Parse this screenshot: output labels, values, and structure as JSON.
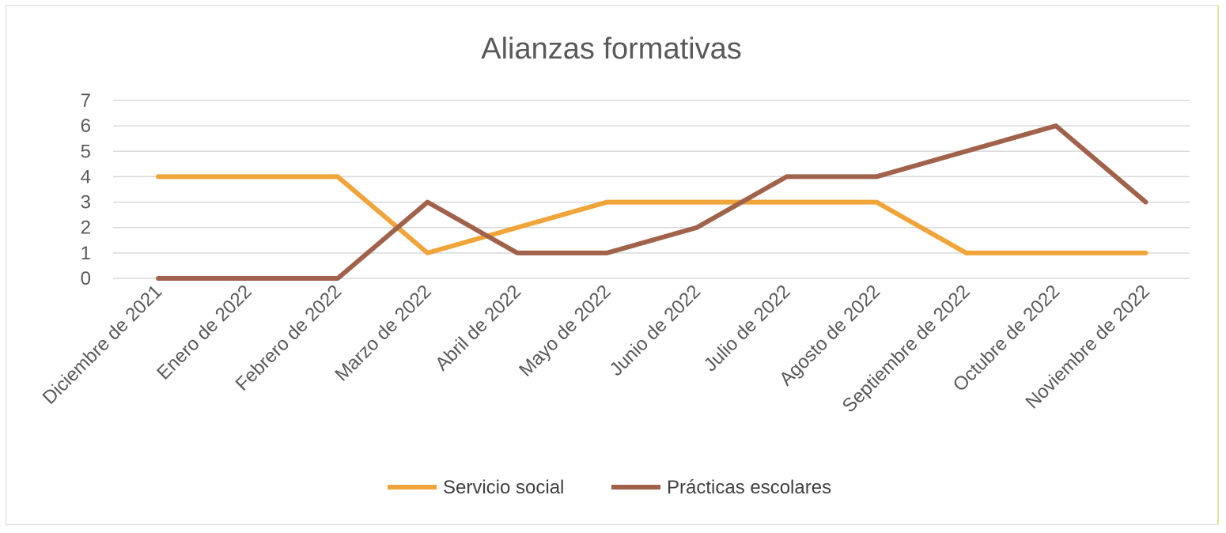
{
  "chart_data": {
    "type": "line",
    "title": "Alianzas formativas",
    "categories": [
      "Diciembre de 2021",
      "Enero de 2022",
      "Febrero de 2022",
      "Marzo de 2022",
      "Abril de 2022",
      "Mayo de 2022",
      "Junio de 2022",
      "Julio de 2022",
      "Agosto de 2022",
      "Septiembre de 2022",
      "Octubre de 2022",
      "Noviembre de 2022"
    ],
    "series": [
      {
        "name": "Servicio social",
        "color": "#f0a43a",
        "values": [
          4,
          4,
          4,
          1,
          2,
          3,
          3,
          3,
          3,
          1,
          1,
          1
        ]
      },
      {
        "name": "Prácticas escolares",
        "color": "#a0624b",
        "values": [
          0,
          0,
          0,
          3,
          1,
          1,
          2,
          4,
          4,
          5,
          6,
          3
        ]
      }
    ],
    "ylim": [
      0,
      7
    ],
    "yticks": [
      "0",
      "1",
      "2",
      "3",
      "4",
      "5",
      "6",
      "7"
    ],
    "grid": true,
    "legend": "bottom"
  }
}
